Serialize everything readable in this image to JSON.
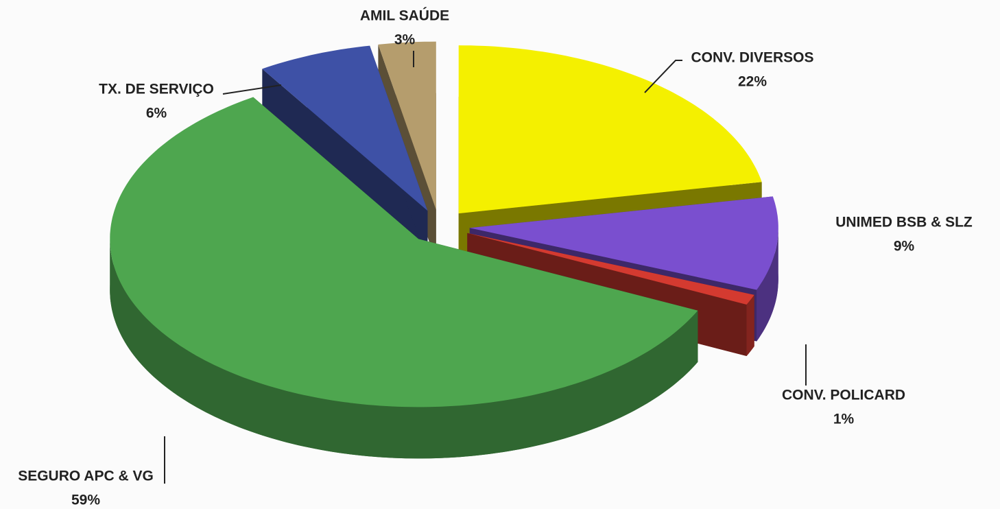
{
  "chart_data": {
    "type": "pie",
    "categories": [
      "CONV. DIVERSOS",
      "UNIMED BSB & SLZ",
      "CONV. POLICARD",
      "SEGURO APC & VG",
      "TX. DE SERVIÇO",
      "AMIL SAÚDE"
    ],
    "values": [
      22,
      9,
      1,
      59,
      6,
      3
    ],
    "value_labels": [
      "22%",
      "9%",
      "1%",
      "59%",
      "6%",
      "3%"
    ],
    "colors": [
      "#f4f000",
      "#7a4fcf",
      "#d43a30",
      "#4ea64f",
      "#3e51a6",
      "#b59d6d"
    ]
  }
}
